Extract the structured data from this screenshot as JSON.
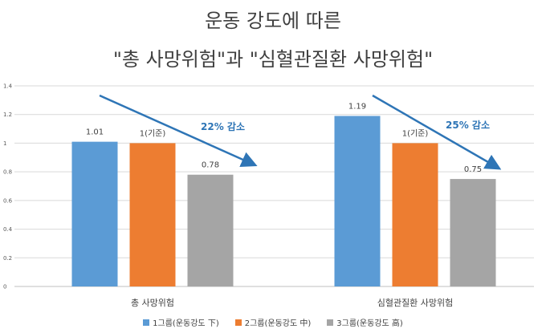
{
  "chart_data": {
    "type": "bar",
    "title_line1": "운동 강도에 따른",
    "title_line2": "\"총 사망위험\"과 \"심혈관질환 사망위험\"",
    "categories": [
      "총 사망위험",
      "심혈관질환 사망위험"
    ],
    "series": [
      {
        "name": "1그룹(운동강도 下)",
        "values": [
          1.01,
          1.19
        ],
        "labels": [
          "1.01",
          "1.19"
        ],
        "color": "#5B9BD5"
      },
      {
        "name": "2그룹(운동강도 中)",
        "values": [
          1,
          1
        ],
        "labels": [
          "1(기준)",
          "1(기준)"
        ],
        "color": "#ED7D31"
      },
      {
        "name": "3그룹(운동강도 高)",
        "values": [
          0.78,
          0.75
        ],
        "labels": [
          "0.78",
          "0.75"
        ],
        "color": "#A5A5A5"
      }
    ],
    "yticks": [
      "0",
      "0.2",
      "0.4",
      "0.6",
      "0.8",
      "1",
      "1.2",
      "1.4"
    ],
    "ylim": [
      0,
      1.4
    ],
    "grid": true,
    "legend_position": "bottom",
    "annotations": [
      {
        "text": "22% 감소",
        "category_index": 0
      },
      {
        "text": "25% 감소",
        "category_index": 1
      }
    ],
    "arrow_color": "#2E75B6"
  }
}
